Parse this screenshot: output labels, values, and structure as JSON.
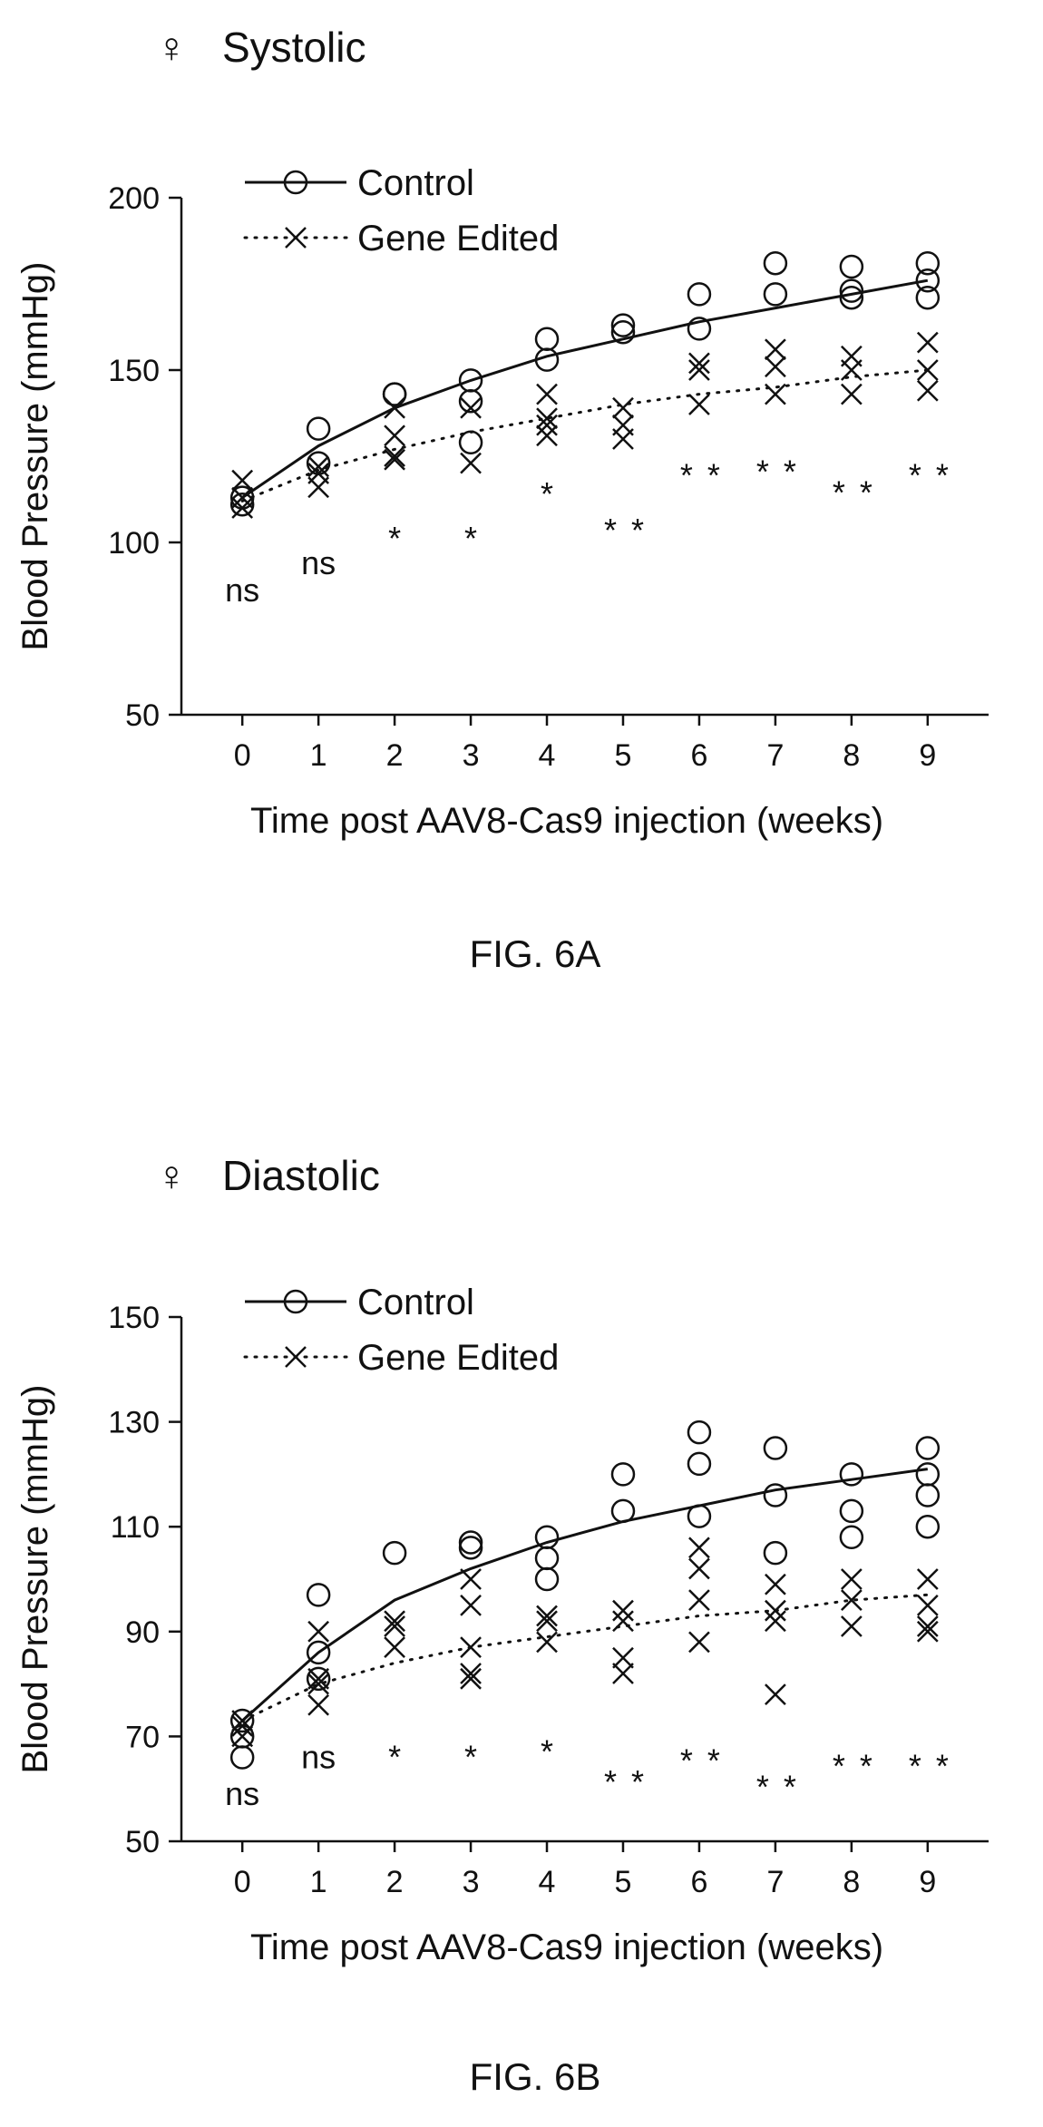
{
  "chart_data": [
    {
      "type": "scatter",
      "symbol": "♀",
      "title": "Systolic",
      "xlabel": "Time post AAV8-Cas9 injection (weeks)",
      "ylabel": "Blood Pressure (mmHg)",
      "ylim": [
        50,
        200
      ],
      "xlim": [
        -0.8,
        9.8
      ],
      "yticks": [
        50,
        100,
        150,
        200
      ],
      "xticks": [
        0,
        1,
        2,
        3,
        4,
        5,
        6,
        7,
        8,
        9
      ],
      "caption": "FIG. 6A",
      "legend_position": "top-left",
      "series": [
        {
          "name": "Control",
          "marker": "circle",
          "fit_style": "solid",
          "points": [
            [
              0,
              113
            ],
            [
              0,
              111
            ],
            [
              1,
              133
            ],
            [
              1,
              123
            ],
            [
              2,
              143
            ],
            [
              2,
              143
            ],
            [
              3,
              147
            ],
            [
              3,
              141
            ],
            [
              3,
              129
            ],
            [
              4,
              159
            ],
            [
              4,
              153
            ],
            [
              5,
              163
            ],
            [
              5,
              161
            ],
            [
              6,
              172
            ],
            [
              6,
              162
            ],
            [
              7,
              181
            ],
            [
              7,
              172
            ],
            [
              8,
              180
            ],
            [
              8,
              173
            ],
            [
              8,
              171
            ],
            [
              9,
              181
            ],
            [
              9,
              176
            ],
            [
              9,
              171
            ]
          ],
          "fit": [
            [
              0,
              113
            ],
            [
              1,
              128
            ],
            [
              2,
              139
            ],
            [
              3,
              147
            ],
            [
              4,
              154
            ],
            [
              5,
              159
            ],
            [
              6,
              164
            ],
            [
              7,
              168
            ],
            [
              8,
              172
            ],
            [
              9,
              176
            ]
          ]
        },
        {
          "name": "Gene Edited",
          "marker": "x",
          "fit_style": "dotted",
          "points": [
            [
              0,
              118
            ],
            [
              0,
              113
            ],
            [
              0,
              110
            ],
            [
              1,
              122
            ],
            [
              1,
              120
            ],
            [
              1,
              116
            ],
            [
              2,
              139
            ],
            [
              2,
              131
            ],
            [
              2,
              125
            ],
            [
              2,
              124
            ],
            [
              3,
              139
            ],
            [
              3,
              123
            ],
            [
              4,
              143
            ],
            [
              4,
              136
            ],
            [
              4,
              134
            ],
            [
              4,
              131
            ],
            [
              5,
              139
            ],
            [
              5,
              134
            ],
            [
              5,
              130
            ],
            [
              6,
              152
            ],
            [
              6,
              150
            ],
            [
              6,
              140
            ],
            [
              7,
              156
            ],
            [
              7,
              151
            ],
            [
              7,
              143
            ],
            [
              8,
              154
            ],
            [
              8,
              150
            ],
            [
              8,
              143
            ],
            [
              9,
              158
            ],
            [
              9,
              150
            ],
            [
              9,
              144
            ]
          ],
          "fit": [
            [
              0,
              112
            ],
            [
              1,
              121
            ],
            [
              2,
              127
            ],
            [
              3,
              132
            ],
            [
              4,
              136
            ],
            [
              5,
              140
            ],
            [
              6,
              143
            ],
            [
              7,
              145
            ],
            [
              8,
              148
            ],
            [
              9,
              150
            ]
          ]
        }
      ],
      "annotations": [
        {
          "x": 0,
          "y": 86,
          "text": "ns"
        },
        {
          "x": 1,
          "y": 94,
          "text": "ns"
        },
        {
          "x": 2,
          "y": 101,
          "text": "*"
        },
        {
          "x": 3,
          "y": 101,
          "text": "*"
        },
        {
          "x": 4,
          "y": 114,
          "text": "*"
        },
        {
          "x": 5,
          "y": 106,
          "text": "**"
        },
        {
          "x": 6,
          "y": 122,
          "text": "**"
        },
        {
          "x": 7,
          "y": 123,
          "text": "**"
        },
        {
          "x": 8,
          "y": 117,
          "text": "**"
        },
        {
          "x": 9,
          "y": 122,
          "text": "**"
        }
      ]
    },
    {
      "type": "scatter",
      "symbol": "♀",
      "title": "Diastolic",
      "xlabel": "Time post AAV8-Cas9 injection (weeks)",
      "ylabel": "Blood Pressure (mmHg)",
      "ylim": [
        50,
        150
      ],
      "xlim": [
        -0.8,
        9.8
      ],
      "yticks": [
        50,
        70,
        90,
        110,
        130,
        150
      ],
      "xticks": [
        0,
        1,
        2,
        3,
        4,
        5,
        6,
        7,
        8,
        9
      ],
      "caption": "FIG. 6B",
      "legend_position": "top-left",
      "series": [
        {
          "name": "Control",
          "marker": "circle",
          "fit_style": "solid",
          "points": [
            [
              0,
              73
            ],
            [
              0,
              70
            ],
            [
              0,
              66
            ],
            [
              1,
              97
            ],
            [
              1,
              86
            ],
            [
              1,
              81
            ],
            [
              2,
              105
            ],
            [
              3,
              107
            ],
            [
              3,
              106
            ],
            [
              4,
              108
            ],
            [
              4,
              104
            ],
            [
              4,
              100
            ],
            [
              5,
              120
            ],
            [
              5,
              113
            ],
            [
              6,
              128
            ],
            [
              6,
              122
            ],
            [
              6,
              112
            ],
            [
              7,
              125
            ],
            [
              7,
              116
            ],
            [
              7,
              105
            ],
            [
              8,
              120
            ],
            [
              8,
              113
            ],
            [
              8,
              108
            ],
            [
              9,
              125
            ],
            [
              9,
              120
            ],
            [
              9,
              116
            ],
            [
              9,
              110
            ]
          ],
          "fit": [
            [
              0,
              73
            ],
            [
              1,
              86
            ],
            [
              2,
              96
            ],
            [
              3,
              102
            ],
            [
              4,
              107
            ],
            [
              5,
              111
            ],
            [
              6,
              114
            ],
            [
              7,
              117
            ],
            [
              8,
              119
            ],
            [
              9,
              121
            ]
          ]
        },
        {
          "name": "Gene Edited",
          "marker": "x",
          "fit_style": "dotted",
          "points": [
            [
              0,
              73
            ],
            [
              0,
              72
            ],
            [
              0,
              70
            ],
            [
              1,
              90
            ],
            [
              1,
              81
            ],
            [
              1,
              80
            ],
            [
              1,
              76
            ],
            [
              2,
              92
            ],
            [
              2,
              91
            ],
            [
              2,
              87
            ],
            [
              3,
              100
            ],
            [
              3,
              95
            ],
            [
              3,
              87
            ],
            [
              3,
              82
            ],
            [
              3,
              81
            ],
            [
              4,
              93
            ],
            [
              4,
              92
            ],
            [
              4,
              88
            ],
            [
              5,
              94
            ],
            [
              5,
              92
            ],
            [
              5,
              85
            ],
            [
              5,
              82
            ],
            [
              6,
              106
            ],
            [
              6,
              102
            ],
            [
              6,
              96
            ],
            [
              6,
              88
            ],
            [
              7,
              99
            ],
            [
              7,
              94
            ],
            [
              7,
              92
            ],
            [
              7,
              78
            ],
            [
              8,
              100
            ],
            [
              8,
              96
            ],
            [
              8,
              91
            ],
            [
              9,
              100
            ],
            [
              9,
              95
            ],
            [
              9,
              91
            ],
            [
              9,
              90
            ]
          ],
          "fit": [
            [
              0,
              73
            ],
            [
              1,
              80
            ],
            [
              2,
              84
            ],
            [
              3,
              87
            ],
            [
              4,
              89
            ],
            [
              5,
              91
            ],
            [
              6,
              93
            ],
            [
              7,
              94
            ],
            [
              8,
              96
            ],
            [
              9,
              97
            ]
          ]
        }
      ],
      "annotations": [
        {
          "x": 0,
          "y": 59,
          "text": "ns"
        },
        {
          "x": 1,
          "y": 66,
          "text": "ns"
        },
        {
          "x": 2,
          "y": 66,
          "text": "*"
        },
        {
          "x": 3,
          "y": 66,
          "text": "*"
        },
        {
          "x": 4,
          "y": 67,
          "text": "*"
        },
        {
          "x": 5,
          "y": 63,
          "text": "**"
        },
        {
          "x": 6,
          "y": 67,
          "text": "**"
        },
        {
          "x": 7,
          "y": 62,
          "text": "**"
        },
        {
          "x": 8,
          "y": 66,
          "text": "**"
        },
        {
          "x": 9,
          "y": 66,
          "text": "**"
        }
      ]
    }
  ]
}
